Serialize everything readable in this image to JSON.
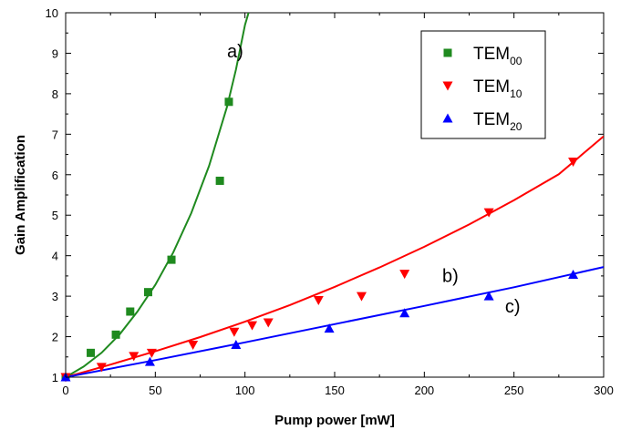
{
  "chart_data": {
    "type": "scatter",
    "title": "",
    "xlabel": "Pump power [mW]",
    "ylabel": "Gain Amplification",
    "xlim": [
      0,
      300
    ],
    "ylim": [
      1,
      10
    ],
    "x_ticks": [
      0,
      50,
      100,
      150,
      200,
      250,
      300
    ],
    "y_ticks": [
      1,
      2,
      3,
      4,
      5,
      6,
      7,
      8,
      9,
      10
    ],
    "grid": false,
    "legend_position": "top-right",
    "series": [
      {
        "name": "TEM",
        "subscript": "00",
        "color": "#1f8a1f",
        "marker": "square",
        "curve_label": "a)",
        "points": [
          [
            0,
            1.0
          ],
          [
            14,
            1.6
          ],
          [
            28,
            2.05
          ],
          [
            36,
            2.62
          ],
          [
            46,
            3.1
          ],
          [
            59,
            3.9
          ],
          [
            86,
            5.85
          ],
          [
            91,
            7.8
          ]
        ],
        "fit": [
          [
            0,
            1.0
          ],
          [
            10,
            1.26
          ],
          [
            20,
            1.6
          ],
          [
            30,
            2.05
          ],
          [
            40,
            2.62
          ],
          [
            50,
            3.28
          ],
          [
            60,
            4.08
          ],
          [
            70,
            5.05
          ],
          [
            80,
            6.22
          ],
          [
            90,
            7.68
          ],
          [
            95,
            8.6
          ],
          [
            100,
            9.7
          ],
          [
            102,
            10.0
          ]
        ]
      },
      {
        "name": "TEM",
        "subscript": "10",
        "color": "#ff0000",
        "marker": "triangle-down",
        "curve_label": "b)",
        "points": [
          [
            0,
            1.0
          ],
          [
            20,
            1.25
          ],
          [
            38,
            1.52
          ],
          [
            48,
            1.6
          ],
          [
            71,
            1.8
          ],
          [
            94,
            2.12
          ],
          [
            104,
            2.28
          ],
          [
            113,
            2.35
          ],
          [
            141,
            2.9
          ],
          [
            165,
            3.0
          ],
          [
            189,
            3.55
          ],
          [
            236,
            5.07
          ],
          [
            283,
            6.32
          ]
        ],
        "fit": [
          [
            0,
            1.0
          ],
          [
            25,
            1.31
          ],
          [
            50,
            1.64
          ],
          [
            75,
            1.99
          ],
          [
            100,
            2.37
          ],
          [
            125,
            2.78
          ],
          [
            150,
            3.23
          ],
          [
            175,
            3.71
          ],
          [
            200,
            4.22
          ],
          [
            225,
            4.77
          ],
          [
            250,
            5.37
          ],
          [
            275,
            6.01
          ],
          [
            300,
            6.95
          ]
        ]
      },
      {
        "name": "TEM",
        "subscript": "20",
        "color": "#0000ff",
        "marker": "triangle-up",
        "curve_label": "c)",
        "points": [
          [
            0,
            1.0
          ],
          [
            47,
            1.38
          ],
          [
            95,
            1.8
          ],
          [
            147,
            2.2
          ],
          [
            189,
            2.58
          ],
          [
            236,
            3.0
          ],
          [
            283,
            3.53
          ]
        ],
        "fit": [
          [
            0,
            1.0
          ],
          [
            50,
            1.42
          ],
          [
            100,
            1.86
          ],
          [
            150,
            2.31
          ],
          [
            200,
            2.76
          ],
          [
            250,
            3.22
          ],
          [
            300,
            3.72
          ]
        ]
      }
    ]
  }
}
